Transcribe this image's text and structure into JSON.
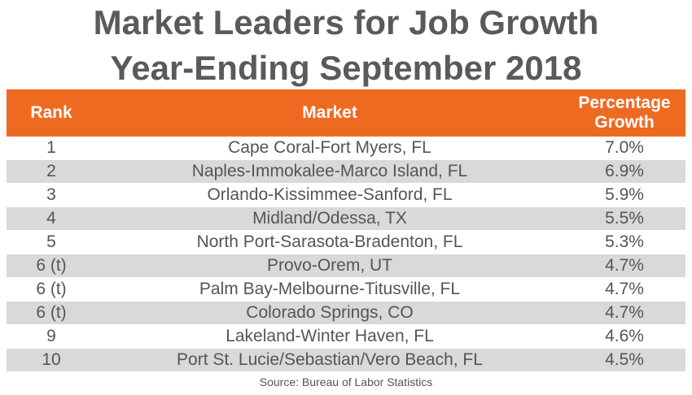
{
  "title_line1": "Market Leaders for Job Growth",
  "title_line2": "Year-Ending September 2018",
  "source": "Source: Bureau of Labor Statistics",
  "colors": {
    "header_bg": "#ef6a21",
    "alt_row_bg": "#d9d9d9",
    "text": "#555555"
  },
  "chart_data": {
    "type": "table",
    "title": "Market Leaders for Job Growth Year-Ending September 2018",
    "columns": [
      "Rank",
      "Market",
      "Percentage Growth"
    ],
    "header_pct_line1": "Percentage",
    "header_pct_line2": "Growth",
    "rows": [
      {
        "rank": "1",
        "market": "Cape Coral-Fort Myers, FL",
        "pct": "7.0%"
      },
      {
        "rank": "2",
        "market": "Naples-Immokalee-Marco Island, FL",
        "pct": "6.9%"
      },
      {
        "rank": "3",
        "market": "Orlando-Kissimmee-Sanford, FL",
        "pct": "5.9%"
      },
      {
        "rank": "4",
        "market": "Midland/Odessa, TX",
        "pct": "5.5%"
      },
      {
        "rank": "5",
        "market": "North Port-Sarasota-Bradenton, FL",
        "pct": "5.3%"
      },
      {
        "rank": "6 (t)",
        "market": "Provo-Orem, UT",
        "pct": "4.7%"
      },
      {
        "rank": "6 (t)",
        "market": "Palm Bay-Melbourne-Titusville, FL",
        "pct": "4.7%"
      },
      {
        "rank": "6 (t)",
        "market": "Colorado Springs, CO",
        "pct": "4.7%"
      },
      {
        "rank": "9",
        "market": "Lakeland-Winter Haven, FL",
        "pct": "4.6%"
      },
      {
        "rank": "10",
        "market": "Port St. Lucie/Sebastian/Vero Beach, FL",
        "pct": "4.5%"
      }
    ]
  }
}
